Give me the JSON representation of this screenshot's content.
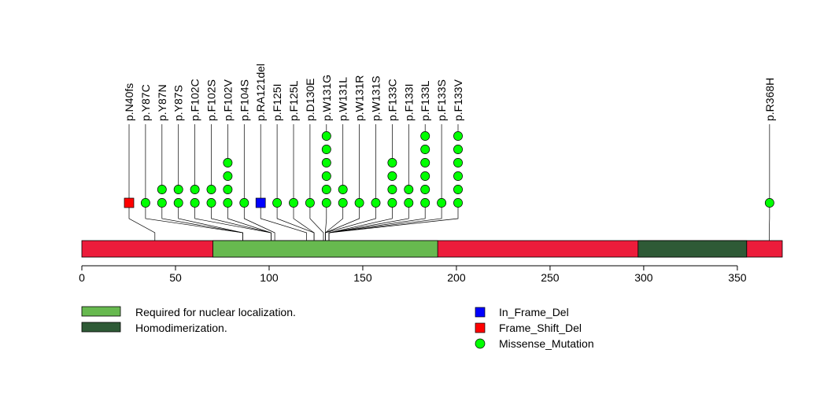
{
  "chart_data": {
    "type": "lollipop",
    "title": "",
    "xlim": [
      0,
      374
    ],
    "x_ticks": [
      0,
      50,
      100,
      150,
      200,
      250,
      300,
      350
    ],
    "x_tick_labels": [
      "0",
      "50",
      "100",
      "150",
      "200",
      "250",
      "300",
      "350"
    ],
    "protein_length": 374,
    "domains": [
      {
        "name": "Required for nuclear localization.",
        "start": 70,
        "end": 190,
        "color": "#67b94f"
      },
      {
        "name": "Homodimerization.",
        "start": 297,
        "end": 355,
        "color": "#2e5a36"
      }
    ],
    "backbone_color": "#ec1c3b",
    "mutations": [
      {
        "label": "p.N40fs",
        "position": 39,
        "count": 1,
        "type": "Frame_Shift_Del"
      },
      {
        "label": "p.Y87C",
        "position": 86,
        "count": 1,
        "type": "Missense_Mutation"
      },
      {
        "label": "p.Y87N",
        "position": 86,
        "count": 2,
        "type": "Missense_Mutation"
      },
      {
        "label": "p.Y87S",
        "position": 86,
        "count": 2,
        "type": "Missense_Mutation"
      },
      {
        "label": "p.F102C",
        "position": 101,
        "count": 2,
        "type": "Missense_Mutation"
      },
      {
        "label": "p.F102S",
        "position": 101,
        "count": 2,
        "type": "Missense_Mutation"
      },
      {
        "label": "p.F102V",
        "position": 101,
        "count": 4,
        "type": "Missense_Mutation"
      },
      {
        "label": "p.F104S",
        "position": 103,
        "count": 1,
        "type": "Missense_Mutation"
      },
      {
        "label": "p.RA121del",
        "position": 120,
        "count": 1,
        "type": "In_Frame_Del"
      },
      {
        "label": "p.F125I",
        "position": 124,
        "count": 1,
        "type": "Missense_Mutation"
      },
      {
        "label": "p.F125L",
        "position": 124,
        "count": 1,
        "type": "Missense_Mutation"
      },
      {
        "label": "p.D130E",
        "position": 129,
        "count": 1,
        "type": "Missense_Mutation"
      },
      {
        "label": "p.W131G",
        "position": 130,
        "count": 6,
        "type": "Missense_Mutation"
      },
      {
        "label": "p.W131L",
        "position": 130,
        "count": 2,
        "type": "Missense_Mutation"
      },
      {
        "label": "p.W131R",
        "position": 130,
        "count": 1,
        "type": "Missense_Mutation"
      },
      {
        "label": "p.W131S",
        "position": 130,
        "count": 1,
        "type": "Missense_Mutation"
      },
      {
        "label": "p.F133C",
        "position": 132,
        "count": 4,
        "type": "Missense_Mutation"
      },
      {
        "label": "p.F133I",
        "position": 132,
        "count": 2,
        "type": "Missense_Mutation"
      },
      {
        "label": "p.F133L",
        "position": 132,
        "count": 6,
        "type": "Missense_Mutation"
      },
      {
        "label": "p.F133S",
        "position": 132,
        "count": 1,
        "type": "Missense_Mutation"
      },
      {
        "label": "p.F133V",
        "position": 132,
        "count": 6,
        "type": "Missense_Mutation"
      },
      {
        "label": "p.R368H",
        "position": 367,
        "count": 1,
        "type": "Missense_Mutation"
      }
    ],
    "legend_domains": [
      {
        "label": "Required for nuclear localization.",
        "color": "#67b94f"
      },
      {
        "label": "Homodimerization.",
        "color": "#2e5a36"
      }
    ],
    "legend_types": [
      {
        "label": "In_Frame_Del",
        "color": "#0000ff",
        "shape": "square"
      },
      {
        "label": "Frame_Shift_Del",
        "color": "#ff0000",
        "shape": "square"
      },
      {
        "label": "Missense_Mutation",
        "color": "#00ff00",
        "shape": "circle"
      }
    ]
  }
}
